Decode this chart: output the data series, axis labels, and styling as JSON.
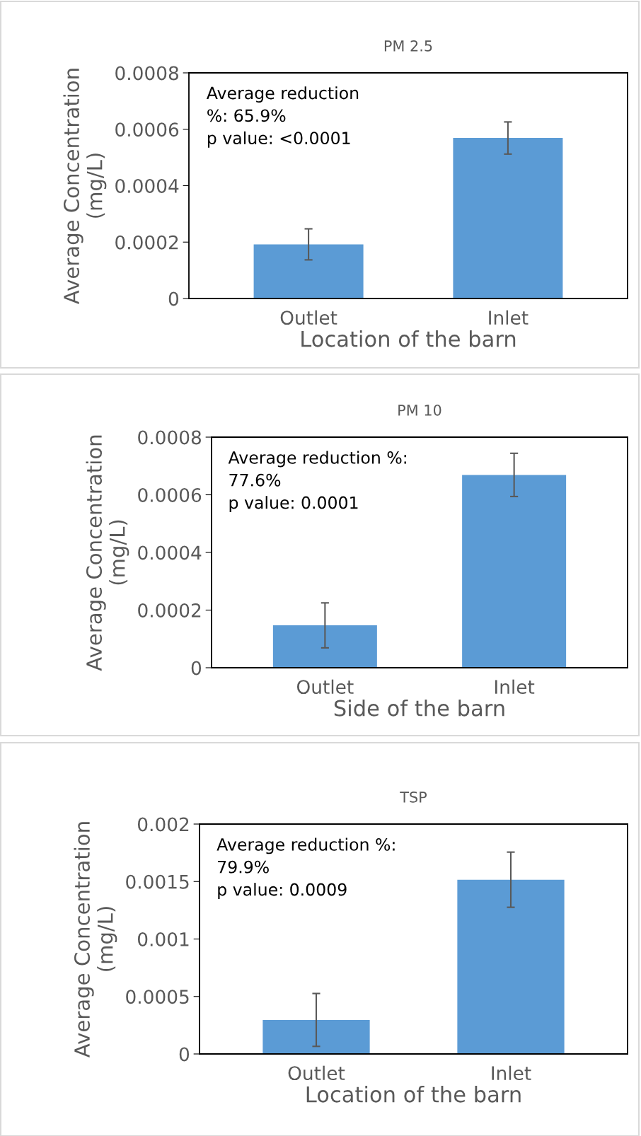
{
  "chart_data": [
    {
      "type": "bar",
      "title": "PM 2.5",
      "xlabel": "Location of the barn",
      "ylabel": "Average Concentration\n(mg/L)",
      "categories": [
        "Outlet",
        "Inlet"
      ],
      "values": [
        0.000192,
        0.000569
      ],
      "errors": [
        5.5e-05,
        5.7e-05
      ],
      "color": "#5b9bd5",
      "ylim": [
        0,
        0.0008
      ],
      "yticks": [
        0,
        0.0002,
        0.0004,
        0.0006,
        0.0008
      ],
      "grid": false,
      "annotations": [
        "Average reduction\n%: 65.9%\np value: <0.0001"
      ]
    },
    {
      "type": "bar",
      "title": "PM 10",
      "xlabel": "Side of the barn",
      "ylabel": "Average Concentration\n(mg/L)",
      "categories": [
        "Outlet",
        "Inlet"
      ],
      "values": [
        0.000147,
        0.000669
      ],
      "errors": [
        7.8e-05,
        7.5e-05
      ],
      "color": "#5b9bd5",
      "ylim": [
        0,
        0.0008
      ],
      "yticks": [
        0,
        0.0002,
        0.0004,
        0.0006,
        0.0008
      ],
      "grid": false,
      "annotations": [
        "Average reduction %:\n77.6%\np value: 0.0001"
      ]
    },
    {
      "type": "bar",
      "title": "TSP",
      "xlabel": "Location of the barn",
      "ylabel": "Average Concentration\n(mg/L)",
      "categories": [
        "Outlet",
        "Inlet"
      ],
      "values": [
        0.000296,
        0.001516
      ],
      "errors": [
        0.00023,
        0.00024
      ],
      "color": "#5b9bd5",
      "ylim": [
        0,
        0.002
      ],
      "yticks": [
        0,
        0.0005,
        0.001,
        0.0015,
        0.002
      ],
      "grid": false,
      "annotations": [
        "Average reduction %:\n79.9%\np value: 0.0009"
      ]
    }
  ]
}
